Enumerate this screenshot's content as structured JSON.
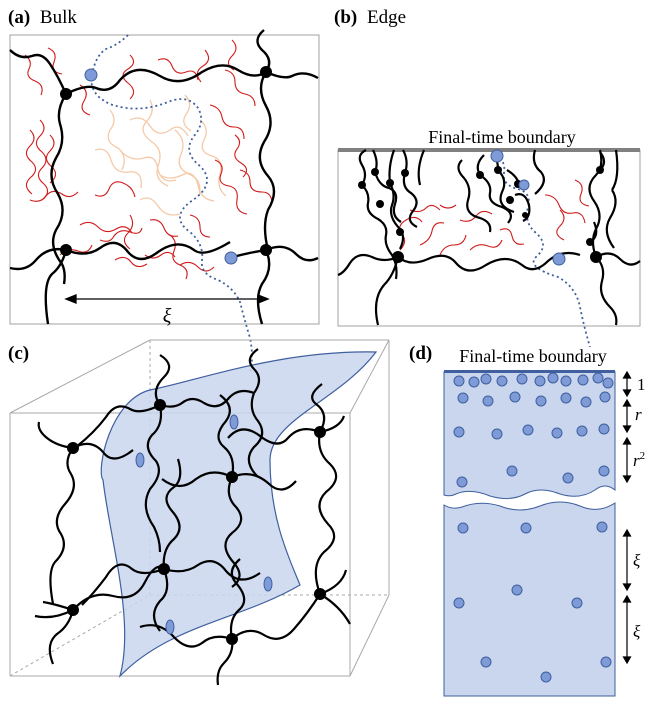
{
  "figure": {
    "panels": [
      {
        "letter": "(a)",
        "title": "Bulk"
      },
      {
        "letter": "(b)",
        "title": "Edge"
      },
      {
        "letter": "(c)",
        "title": ""
      },
      {
        "letter": "(d)",
        "title": ""
      }
    ],
    "panel_a": {
      "scale_label": "ξ"
    },
    "panel_b": {
      "boundary_label": "Final-time boundary"
    },
    "panel_d": {
      "boundary_label": "Final-time boundary",
      "spacing_labels": [
        "1",
        "r",
        "r2",
        "ξ",
        "ξ"
      ]
    }
  },
  "colors": {
    "polymer": "#000000",
    "red_chain": "#d01c1c",
    "faded_chain": "#f5c9a8",
    "surface_fill": "#c9d6ee",
    "surface_stroke": "#3f5f9e",
    "dot_fill": "#7e9bd8",
    "dot_stroke": "#3f5f9e",
    "boundary_bar": "#808080",
    "frame": "#a0a0a0"
  }
}
